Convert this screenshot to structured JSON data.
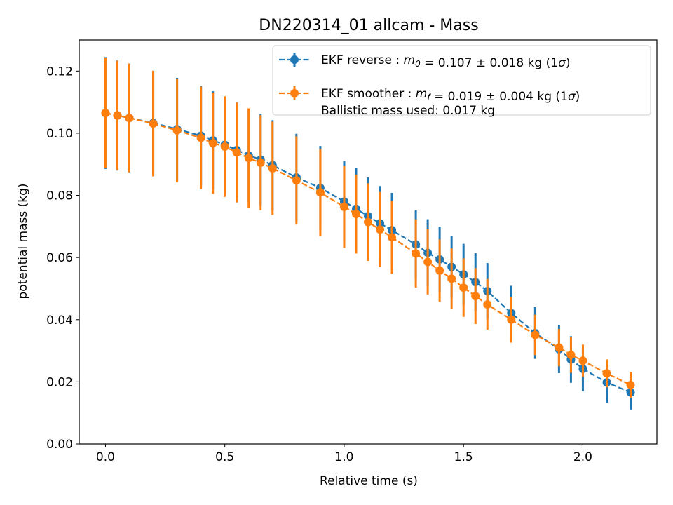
{
  "chart_data": {
    "type": "scatter",
    "title": "DN220314_01 allcam - Mass",
    "xlabel": "Relative time (s)",
    "ylabel": "potential mass (kg)",
    "xlim": [
      -0.11,
      2.31
    ],
    "ylim": [
      0.0,
      0.13
    ],
    "xticks": [
      0.0,
      0.5,
      1.0,
      1.5,
      2.0
    ],
    "xtick_labels": [
      "0.0",
      "0.5",
      "1.0",
      "1.5",
      "2.0"
    ],
    "yticks": [
      0.0,
      0.02,
      0.04,
      0.06,
      0.08,
      0.1,
      0.12
    ],
    "ytick_labels": [
      "0.00",
      "0.02",
      "0.04",
      "0.06",
      "0.08",
      "0.10",
      "0.12"
    ],
    "grid": false,
    "legend_position": "top-right",
    "series": [
      {
        "name": "EKF reverse : m0 = 0.107 ± 0.018 kg (1σ)",
        "legend_prefix": "EKF reverse : ",
        "legend_symbol": "m",
        "legend_subscript": "0",
        "legend_value": " =  0.107 ± 0.018 kg (1",
        "legend_sigma": "σ",
        "legend_suffix": ")",
        "color": "#1f77b4",
        "x": [
          0.0,
          0.05,
          0.1,
          0.2,
          0.3,
          0.4,
          0.45,
          0.5,
          0.55,
          0.6,
          0.65,
          0.7,
          0.8,
          0.9,
          1.0,
          1.05,
          1.1,
          1.15,
          1.2,
          1.3,
          1.35,
          1.4,
          1.45,
          1.5,
          1.55,
          1.6,
          1.7,
          1.8,
          1.9,
          1.95,
          2.0,
          2.1,
          2.2
        ],
        "y": [
          0.1065,
          0.1057,
          0.1049,
          0.1033,
          0.1013,
          0.0992,
          0.0977,
          0.0963,
          0.0946,
          0.0929,
          0.0915,
          0.0897,
          0.0858,
          0.0824,
          0.078,
          0.0757,
          0.0733,
          0.071,
          0.0688,
          0.0642,
          0.0615,
          0.0594,
          0.057,
          0.0546,
          0.0521,
          0.0492,
          0.0421,
          0.0357,
          0.0305,
          0.0272,
          0.0242,
          0.0198,
          0.0166
        ],
        "yerr": [
          0.018,
          0.0177,
          0.0175,
          0.0168,
          0.0165,
          0.016,
          0.0158,
          0.0155,
          0.0152,
          0.0151,
          0.0148,
          0.0145,
          0.014,
          0.0135,
          0.013,
          0.013,
          0.0125,
          0.012,
          0.012,
          0.011,
          0.0108,
          0.0105,
          0.01,
          0.0098,
          0.0093,
          0.009,
          0.0088,
          0.0083,
          0.0077,
          0.0075,
          0.0072,
          0.0065,
          0.0055
        ]
      },
      {
        "name": "EKF smoother : mf = 0.019 ± 0.004 kg (1σ)",
        "legend_prefix": "EKF smoother : ",
        "legend_symbol": "m",
        "legend_subscript": "f",
        "legend_value": " =  0.019 ± 0.004 kg (1",
        "legend_sigma": "σ",
        "legend_suffix": ")",
        "legend_line2": " Ballistic mass used: 0.017 kg",
        "color": "#ff7f0e",
        "x": [
          0.0,
          0.05,
          0.1,
          0.2,
          0.3,
          0.4,
          0.45,
          0.5,
          0.55,
          0.6,
          0.65,
          0.7,
          0.8,
          0.9,
          1.0,
          1.05,
          1.1,
          1.15,
          1.2,
          1.3,
          1.35,
          1.4,
          1.45,
          1.5,
          1.55,
          1.6,
          1.7,
          1.8,
          1.9,
          1.95,
          2.0,
          2.1,
          2.2
        ],
        "y": [
          0.1065,
          0.1057,
          0.1049,
          0.1031,
          0.1009,
          0.0985,
          0.0968,
          0.0957,
          0.0938,
          0.092,
          0.0905,
          0.0887,
          0.0848,
          0.0809,
          0.0763,
          0.074,
          0.0714,
          0.069,
          0.0665,
          0.0613,
          0.0586,
          0.0558,
          0.0532,
          0.0503,
          0.0476,
          0.0449,
          0.04,
          0.0351,
          0.031,
          0.0287,
          0.0268,
          0.0227,
          0.019
        ],
        "yerr": [
          0.0178,
          0.0176,
          0.0175,
          0.017,
          0.0167,
          0.0165,
          0.0163,
          0.0162,
          0.0161,
          0.016,
          0.0153,
          0.015,
          0.0142,
          0.014,
          0.0132,
          0.0127,
          0.0125,
          0.0121,
          0.0117,
          0.011,
          0.0105,
          0.01,
          0.0097,
          0.0094,
          0.009,
          0.0082,
          0.0074,
          0.0065,
          0.006,
          0.0058,
          0.0052,
          0.0045,
          0.0042
        ]
      }
    ]
  }
}
